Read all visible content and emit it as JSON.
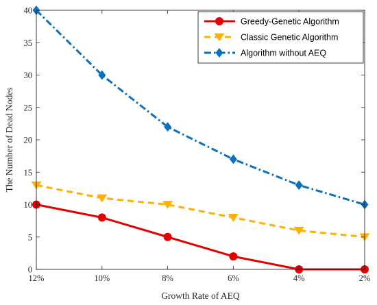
{
  "chart_data": {
    "type": "line",
    "title": "",
    "xlabel": "Growth Rate of AEQ",
    "ylabel": "The Number of Dead Nodes",
    "categories": [
      "12%",
      "10%",
      "8%",
      "6%",
      "4%",
      "2%"
    ],
    "ylim": [
      0,
      40
    ],
    "yticks": [
      0,
      5,
      10,
      15,
      20,
      25,
      30,
      35,
      40
    ],
    "grid": false,
    "legend_position": "top-right",
    "series": [
      {
        "name": "Greedy-Genetic Algorithm",
        "values": [
          10,
          8,
          5,
          2,
          0,
          0
        ],
        "color": "#e50000",
        "line_style": "solid",
        "marker": "circle"
      },
      {
        "name": "Classic Genetic Algorithm",
        "values": [
          13,
          11,
          10,
          8,
          6,
          5
        ],
        "color": "#ffb000",
        "line_style": "dashed",
        "marker": "triangle-down"
      },
      {
        "name": "Algorithm without AEQ",
        "values": [
          40,
          30,
          22,
          17,
          13,
          10
        ],
        "color": "#0a6fbe",
        "line_style": "dash-dot",
        "marker": "diamond"
      }
    ]
  }
}
